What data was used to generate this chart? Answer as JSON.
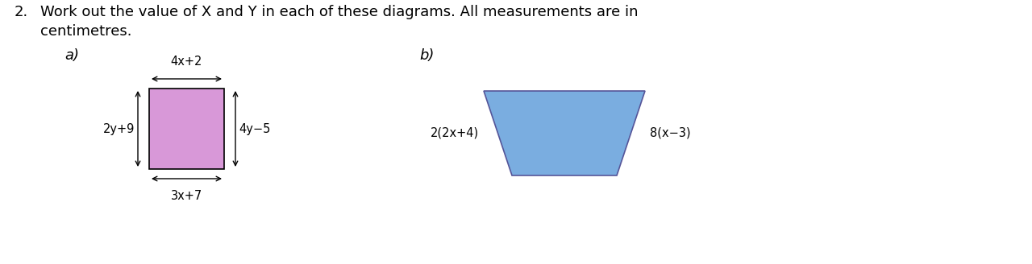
{
  "bg_color": "#ffffff",
  "question_number": "2.",
  "title_line1": "Work out the value of X and Y in each of these diagrams. All measurements are in",
  "title_line2": "centimetres.",
  "label_a": "a)",
  "label_b": "b)",
  "rect_color": "#d898d8",
  "rect_top_label": "4x+2",
  "rect_bottom_label": "3x+7",
  "rect_left_label": "2y+9",
  "rect_right_label": "4y−5",
  "trap_color": "#7aade0",
  "trap_left_label": "2(2x+4)",
  "trap_right_label": "8(x−3)",
  "title_fontsize": 13,
  "label_fontsize": 13,
  "diagram_fontsize": 10.5
}
